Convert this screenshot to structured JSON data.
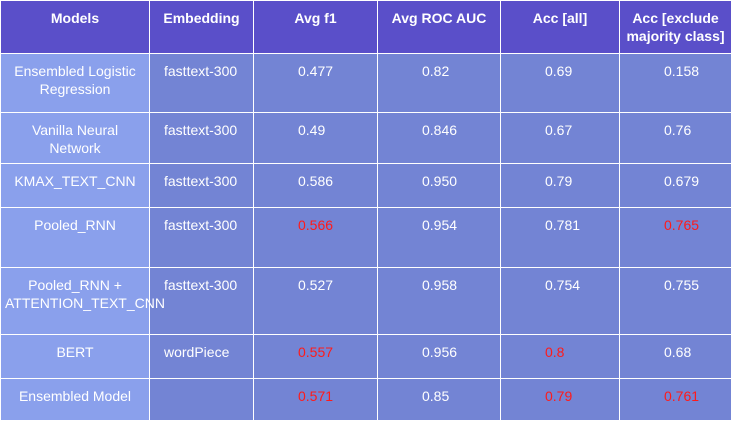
{
  "headers": [
    "Models",
    "Embedding",
    "Avg f1",
    "Avg ROC AUC",
    "Acc [all]",
    "Acc [exclude majority class]"
  ],
  "rows": [
    {
      "model": "Ensembled Logistic Regression",
      "embedding": "fasttext-300",
      "f1": "0.477",
      "roc": "0.82",
      "acc_all": "0.69",
      "acc_excl": "0.158"
    },
    {
      "model": "Vanilla Neural Network",
      "embedding": "fasttext-300",
      "f1": "0.49",
      "roc": "0.846",
      "acc_all": "0.67",
      "acc_excl": "0.76"
    },
    {
      "model": "KMAX_TEXT_CNN",
      "embedding": "fasttext-300",
      "f1": "0.586",
      "roc": "0.950",
      "acc_all": "0.79",
      "acc_excl": "0.679"
    },
    {
      "model": "Pooled_RNN",
      "embedding": "fasttext-300",
      "f1": "0.566",
      "roc": "0.954",
      "acc_all": "0.781",
      "acc_excl": "0.765"
    },
    {
      "model": "Pooled_RNN + ATTENTION_TEXT_CNN",
      "embedding": "fasttext-300",
      "f1": "0.527",
      "roc": "0.958",
      "acc_all": "0.754",
      "acc_excl": "0.755"
    },
    {
      "model": "BERT",
      "embedding": "wordPiece",
      "f1": "0.557",
      "roc": "0.956",
      "acc_all": "0.8",
      "acc_excl": "0.68"
    },
    {
      "model": "Ensembled Model",
      "embedding": "",
      "f1": "0.571",
      "roc": "0.85",
      "acc_all": "0.79",
      "acc_excl": "0.761"
    }
  ],
  "colors": {
    "header_bg": "#5a4fc9",
    "first_col_bg": "#8aa0ec",
    "cell_bg": "#7384d4",
    "highlight": "#ff1a1a"
  }
}
